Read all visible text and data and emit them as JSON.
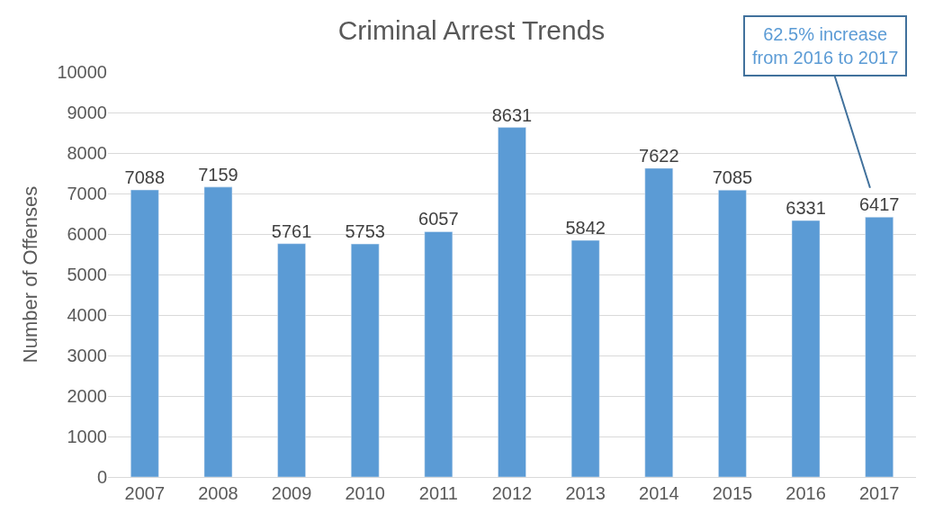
{
  "chart_data": {
    "type": "bar",
    "title": "Criminal Arrest Trends",
    "ylabel": "Number of Offenses",
    "categories": [
      "2007",
      "2008",
      "2009",
      "2010",
      "2011",
      "2012",
      "2013",
      "2014",
      "2015",
      "2016",
      "2017"
    ],
    "values": [
      7088,
      7159,
      5761,
      5753,
      6057,
      8631,
      5842,
      7622,
      7085,
      6331,
      6417
    ],
    "color": "#5b9bd5",
    "ylim": [
      0,
      10000
    ],
    "yticks": [
      0,
      1000,
      2000,
      3000,
      4000,
      5000,
      6000,
      7000,
      8000,
      9000,
      10000
    ],
    "grid": "y",
    "data_labels": true,
    "legend": false,
    "annotations": [
      {
        "text": "62.5% increase\nfrom 2016 to 2017",
        "x": "2017",
        "y": 6417
      }
    ]
  }
}
